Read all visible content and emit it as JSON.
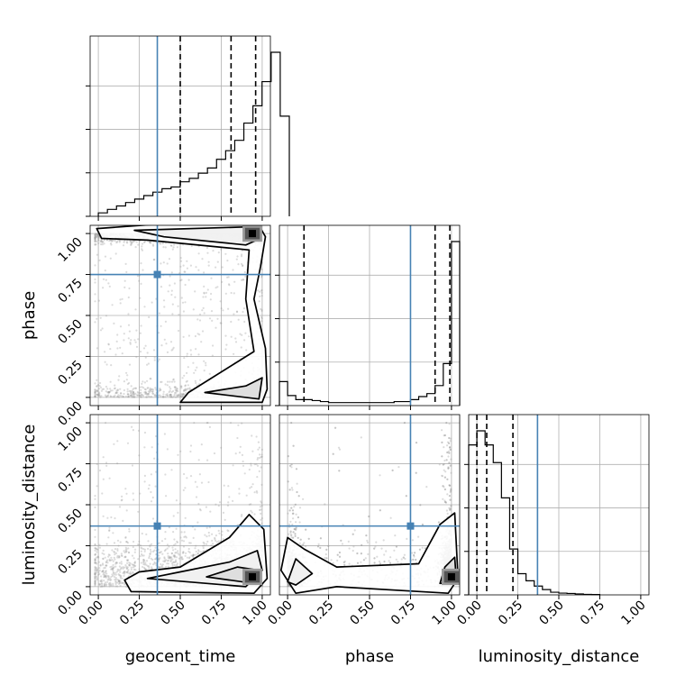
{
  "chart_data": {
    "type": "corner",
    "parameters": [
      "geocent_time",
      "phase",
      "luminosity_distance"
    ],
    "axis_labels": {
      "x": [
        "geocent_time",
        "phase",
        "luminosity_distance"
      ],
      "y": [
        "phase",
        "luminosity_distance"
      ]
    },
    "tick_labels": [
      "0.00",
      "0.25",
      "0.50",
      "0.75",
      "1.00"
    ],
    "ticks": [
      0.0,
      0.25,
      0.5,
      0.75,
      1.0
    ],
    "range": [
      -0.05,
      1.05
    ],
    "truths": {
      "geocent_time": 0.36,
      "phase": 0.75,
      "luminosity_distance": 0.37
    },
    "truth_color": "#4682b4",
    "grid": true,
    "histograms": {
      "geocent_time": {
        "bin_edges_start": 0.0,
        "bin_width": 0.0555,
        "counts": [
          0.02,
          0.04,
          0.06,
          0.08,
          0.1,
          0.12,
          0.14,
          0.16,
          0.17,
          0.2,
          0.22,
          0.25,
          0.28,
          0.33,
          0.38,
          0.44,
          0.54,
          0.64,
          0.78,
          0.95,
          0.58
        ],
        "quantiles": [
          0.5,
          0.81,
          0.96
        ]
      },
      "phase": {
        "bin_edges_start": -0.05,
        "bin_width": 0.05,
        "counts": [
          0.12,
          0.05,
          0.03,
          0.03,
          0.025,
          0.02,
          0.015,
          0.015,
          0.015,
          0.015,
          0.015,
          0.015,
          0.015,
          0.015,
          0.02,
          0.02,
          0.03,
          0.045,
          0.06,
          0.1,
          0.21,
          0.82
        ],
        "quantiles": [
          0.1,
          0.9,
          0.99
        ]
      },
      "luminosity_distance": {
        "bin_edges_start": -0.05,
        "bin_width": 0.05,
        "counts": [
          0.85,
          0.93,
          0.85,
          0.75,
          0.55,
          0.26,
          0.12,
          0.08,
          0.05,
          0.03,
          0.015,
          0.01,
          0.008,
          0.005,
          0.003,
          0.002
        ],
        "quantiles": [
          0.0,
          0.06,
          0.22
        ]
      }
    },
    "hist2d_modes": {
      "geocent_time-phase": [
        0.94,
        1.0
      ],
      "geocent_time-luminosity_distance": [
        0.94,
        0.06
      ],
      "phase-luminosity_distance": [
        1.0,
        0.06
      ]
    }
  }
}
